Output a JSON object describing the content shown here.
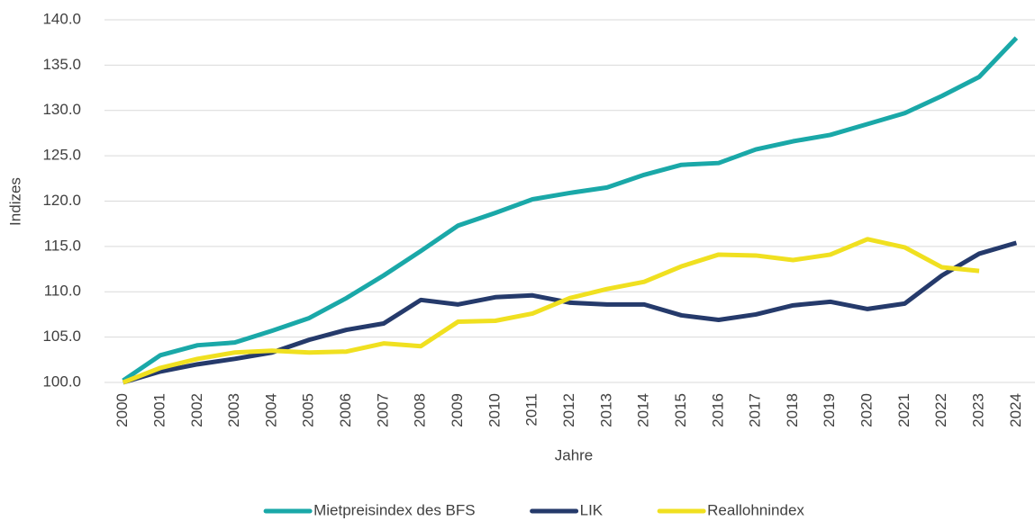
{
  "chart_data": {
    "type": "line",
    "x_label": "Jahre",
    "y_label": "Indizes",
    "categories": [
      "2000",
      "2001",
      "2002",
      "2003",
      "2004",
      "2005",
      "2006",
      "2007",
      "2008",
      "2009",
      "2010",
      "2011",
      "2012",
      "2013",
      "2014",
      "2015",
      "2016",
      "2017",
      "2018",
      "2019",
      "2020",
      "2021",
      "2022",
      "2023",
      "2024"
    ],
    "series": [
      {
        "name": "Mietpreisindex des BFS",
        "color": "#1aa8a8",
        "values": [
          100.2,
          103.0,
          104.1,
          104.4,
          105.7,
          107.1,
          109.3,
          111.8,
          114.5,
          117.3,
          118.7,
          120.2,
          120.9,
          121.5,
          122.9,
          124.0,
          124.2,
          125.7,
          126.6,
          127.3,
          128.5,
          129.7,
          131.6,
          133.7,
          138.0
        ]
      },
      {
        "name": "LIK",
        "color": "#253a6b",
        "values": [
          100.0,
          101.2,
          102.0,
          102.6,
          103.3,
          104.7,
          105.8,
          106.5,
          109.1,
          108.6,
          109.4,
          109.6,
          108.8,
          108.6,
          108.6,
          107.4,
          106.9,
          107.5,
          108.5,
          108.9,
          108.1,
          108.7,
          111.8,
          114.2,
          115.4
        ]
      },
      {
        "name": "Reallohnindex",
        "color": "#f0e020",
        "values": [
          100.0,
          101.6,
          102.6,
          103.3,
          103.5,
          103.3,
          103.4,
          104.3,
          104.0,
          106.7,
          106.8,
          107.6,
          109.3,
          110.3,
          111.1,
          112.8,
          114.1,
          114.0,
          113.5,
          114.1,
          115.8,
          114.9,
          112.7,
          112.3,
          null
        ]
      }
    ],
    "ylim": [
      100,
      140
    ],
    "yticks": [
      {
        "value": 100,
        "label": "100.0"
      },
      {
        "value": 105,
        "label": "105.0"
      },
      {
        "value": 110,
        "label": "110.0"
      },
      {
        "value": 115,
        "label": "115.0"
      },
      {
        "value": 120,
        "label": "120.0"
      },
      {
        "value": 125,
        "label": "125.0"
      },
      {
        "value": 130,
        "label": "130.0"
      },
      {
        "value": 135,
        "label": "135.0"
      },
      {
        "value": 140,
        "label": "140.0"
      }
    ],
    "grid": true,
    "legend": "bottom"
  }
}
